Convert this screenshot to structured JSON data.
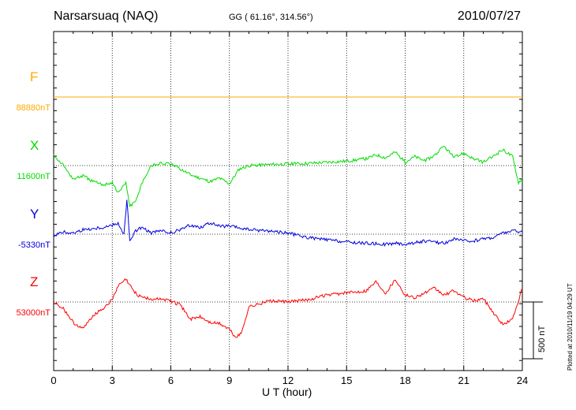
{
  "header": {
    "station": "Narsarsuaq (NAQ)",
    "coords": "GG ( 61.16°, 314.56°)",
    "date": "2010/07/27"
  },
  "footer": {
    "plotted": "Plotted at 2010/11/19 04:29 UT",
    "scale_label": "500 nT"
  },
  "chart_data": {
    "type": "line",
    "xlabel": "U T (hour)",
    "xlim": [
      0,
      24
    ],
    "xticks": [
      "0",
      "3",
      "6",
      "9",
      "12",
      "15",
      "18",
      "21",
      "24"
    ],
    "scale_bar_nT": 500,
    "grid": "dotted vertical at 3-hour ticks; dotted horizontal baselines",
    "series": [
      {
        "name": "F",
        "baseline_label": "88880nT",
        "color": "#ffaa00",
        "x": [
          0,
          24
        ],
        "dev_nT": [
          0,
          0
        ]
      },
      {
        "name": "X",
        "baseline_label": "11600nT",
        "color": "#00dd00",
        "x": [
          0,
          0.5,
          1,
          1.5,
          2,
          2.5,
          3,
          3.3,
          3.5,
          3.7,
          3.9,
          4.2,
          4.5,
          5,
          5.5,
          6,
          6.5,
          7,
          7.5,
          8,
          8.5,
          9,
          9.5,
          10,
          11,
          12,
          13,
          14,
          15,
          16,
          16.5,
          17,
          17.5,
          18,
          18.5,
          19,
          19.5,
          20,
          20.5,
          21,
          21.5,
          22,
          22.5,
          23,
          23.5,
          23.8,
          24
        ],
        "dev_nT": [
          100,
          0,
          -120,
          -90,
          -140,
          -170,
          -150,
          -240,
          -200,
          -150,
          -360,
          -320,
          -160,
          0,
          20,
          10,
          -30,
          -80,
          -110,
          -140,
          -110,
          -160,
          -30,
          0,
          10,
          15,
          20,
          30,
          40,
          60,
          95,
          70,
          120,
          30,
          80,
          40,
          90,
          170,
          70,
          110,
          60,
          30,
          80,
          140,
          80,
          -150,
          -110
        ]
      },
      {
        "name": "Y",
        "baseline_label": "-5330nT",
        "color": "#0000dd",
        "x": [
          0,
          0.5,
          1,
          1.5,
          2,
          2.5,
          3,
          3.3,
          3.6,
          3.75,
          3.9,
          4.2,
          4.5,
          5,
          5.5,
          6,
          6.5,
          7,
          7.5,
          8,
          8.5,
          9,
          10,
          11,
          12,
          13,
          14,
          15,
          16,
          17,
          17.5,
          18,
          19,
          20,
          20.5,
          21,
          21.5,
          22,
          22.5,
          23,
          23.5,
          24
        ],
        "dev_nT": [
          -10,
          20,
          10,
          40,
          50,
          60,
          80,
          100,
          0,
          300,
          -60,
          30,
          60,
          10,
          30,
          10,
          40,
          80,
          60,
          100,
          70,
          70,
          40,
          30,
          10,
          -30,
          -50,
          -70,
          -80,
          -90,
          -80,
          -90,
          -60,
          -80,
          -40,
          -60,
          -60,
          -40,
          -30,
          10,
          30,
          20
        ]
      },
      {
        "name": "Z",
        "baseline_label": "53000nT",
        "color": "#ff0000",
        "x": [
          0,
          0.5,
          1,
          1.5,
          2,
          2.5,
          3,
          3.3,
          3.7,
          4,
          4.3,
          4.7,
          5,
          5.5,
          6,
          6.5,
          7,
          7.5,
          8,
          8.5,
          9,
          9.3,
          9.6,
          10,
          10.5,
          11,
          12,
          13,
          14,
          15,
          16,
          16.5,
          17,
          17.5,
          18,
          18.5,
          19,
          19.5,
          20,
          20.5,
          21,
          21.5,
          22,
          22.5,
          23,
          23.5,
          24
        ],
        "dev_nT": [
          0,
          -60,
          -180,
          -240,
          -120,
          -60,
          20,
          140,
          200,
          120,
          60,
          40,
          20,
          30,
          10,
          -30,
          -150,
          -130,
          -180,
          -190,
          -240,
          -310,
          -280,
          -40,
          -20,
          10,
          0,
          20,
          60,
          80,
          100,
          180,
          80,
          200,
          60,
          40,
          80,
          120,
          60,
          100,
          40,
          10,
          30,
          -90,
          -200,
          -150,
          120
        ]
      }
    ]
  }
}
